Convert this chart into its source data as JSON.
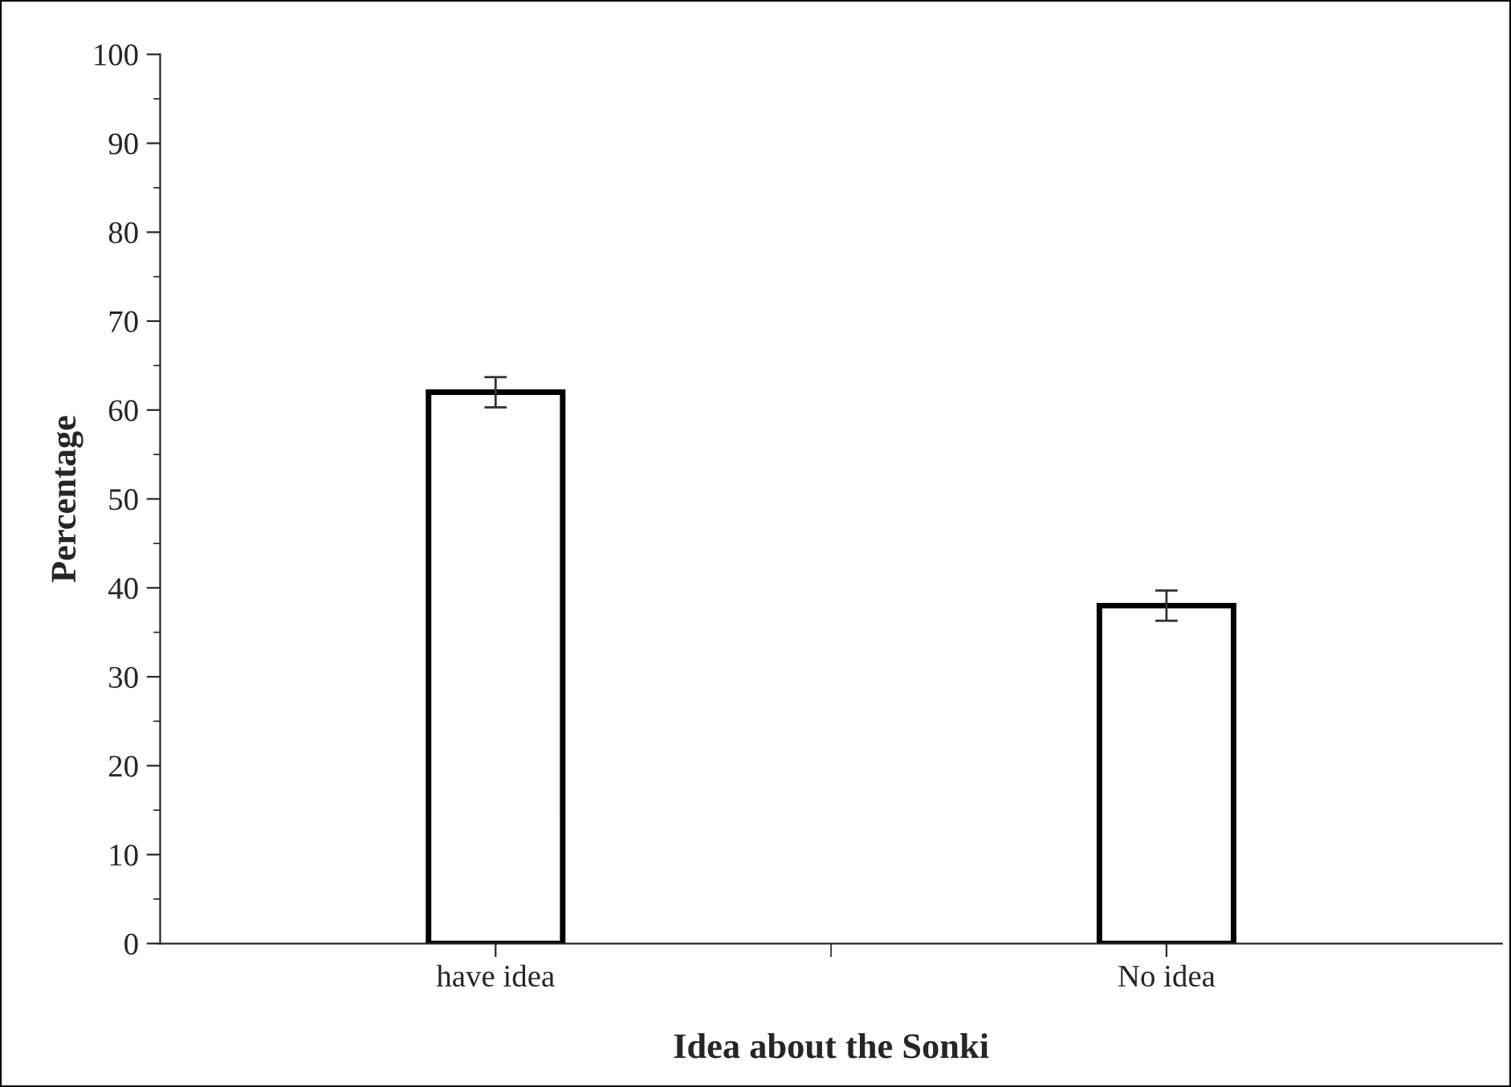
{
  "chart_data": {
    "type": "bar",
    "xlabel": "Idea about the Sonki",
    "ylabel": "Percentage",
    "categories": [
      "have idea",
      "No idea"
    ],
    "values": [
      62,
      38
    ],
    "errors": [
      1.7,
      1.7
    ],
    "color": "#ffffff",
    "ylim": [
      0,
      100
    ],
    "yticks": [
      0,
      10,
      20,
      30,
      40,
      50,
      60,
      70,
      80,
      90,
      100
    ],
    "grid": false,
    "legend": false
  }
}
